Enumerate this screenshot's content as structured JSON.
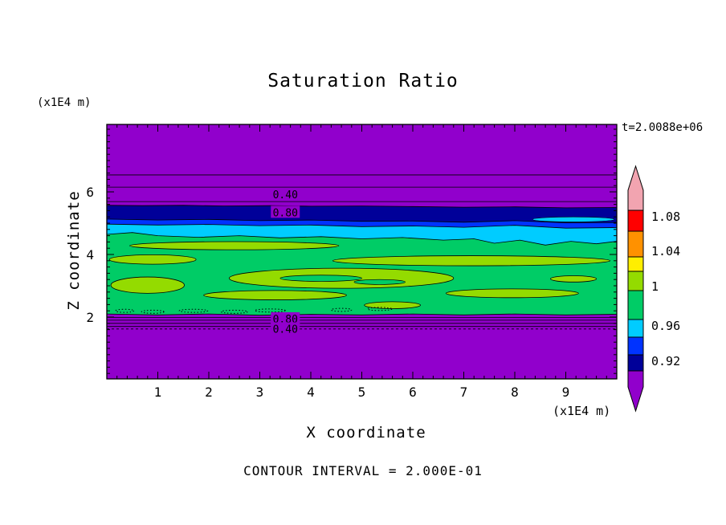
{
  "chart_data": {
    "type": "heatmap",
    "title": "Saturation Ratio",
    "time_annotation": "t=2.0088e+06",
    "xlabel": "X coordinate",
    "ylabel": "Z coordinate",
    "x_unit": "(x1E4 m)",
    "y_unit": "(x1E4 m)",
    "footer": "CONTOUR INTERVAL = 2.000E-01",
    "contour_interval": 0.2,
    "x_ticks": [
      1,
      2,
      3,
      4,
      5,
      6,
      7,
      8,
      9
    ],
    "y_ticks": [
      2,
      4,
      6
    ],
    "x_range": [
      0,
      10
    ],
    "z_range": [
      0,
      8.15
    ],
    "background_color": "#9100CC",
    "blob_color": "#94DB00",
    "green_color": "#00CC66",
    "cyan_color": "#00CCFF",
    "colorbar": {
      "labels": [
        "1.08",
        "1.04",
        "1",
        "0.96",
        "0.92"
      ],
      "colors": [
        "#F2A4B0",
        "#FF0000",
        "#FF9100",
        "#FFEE00",
        "#94DB00",
        "#00CC66",
        "#00CCFF",
        "#0033FF",
        "#000099",
        "#9100CC"
      ]
    },
    "contour_labels": [
      {
        "text": "0.40",
        "x": 3.5,
        "z": 5.92
      },
      {
        "text": "0.80",
        "x": 3.5,
        "z": 5.35
      },
      {
        "text": "0.80",
        "x": 3.5,
        "z": 1.95
      },
      {
        "text": "0.40",
        "x": 3.5,
        "z": 1.63
      }
    ],
    "contour_lines_z": [
      6.54,
      6.15,
      5.69,
      1.99,
      1.9,
      1.8,
      1.7
    ],
    "dashed_lines_z": [
      1.62
    ],
    "bands": [
      {
        "name": "navy",
        "color": "#000099",
        "edge": [
          [
            0,
            5.57
          ],
          [
            0.7,
            5.56
          ],
          [
            1.5,
            5.57
          ],
          [
            2.3,
            5.55
          ],
          [
            3.2,
            5.56
          ],
          [
            4,
            5.54
          ],
          [
            5,
            5.55
          ],
          [
            6,
            5.53
          ],
          [
            7,
            5.51
          ],
          [
            8,
            5.52
          ],
          [
            9,
            5.49
          ],
          [
            10,
            5.5
          ]
        ]
      },
      {
        "name": "blue",
        "color": "#0033FF",
        "edge": [
          [
            0,
            5.13
          ],
          [
            1,
            5.1
          ],
          [
            2,
            5.12
          ],
          [
            3,
            5.08
          ],
          [
            4,
            5.1
          ],
          [
            5,
            5.06
          ],
          [
            6,
            5.07
          ],
          [
            7,
            5.03
          ],
          [
            8,
            5.08
          ],
          [
            9,
            5.01
          ],
          [
            10,
            5.02
          ]
        ]
      },
      {
        "name": "cyan",
        "color": "#00CCFF",
        "edge": [
          [
            0,
            4.97
          ],
          [
            1,
            4.94
          ],
          [
            2,
            4.96
          ],
          [
            3,
            4.92
          ],
          [
            4,
            4.94
          ],
          [
            5,
            4.89
          ],
          [
            6,
            4.91
          ],
          [
            7,
            4.87
          ],
          [
            8,
            4.93
          ],
          [
            9,
            4.84
          ],
          [
            10,
            4.86
          ]
        ]
      },
      {
        "name": "green",
        "color": "#00CC66",
        "edge": [
          [
            0,
            4.64
          ],
          [
            0.5,
            4.7
          ],
          [
            1,
            4.6
          ],
          [
            1.8,
            4.55
          ],
          [
            2.6,
            4.6
          ],
          [
            3.4,
            4.53
          ],
          [
            4.2,
            4.57
          ],
          [
            5,
            4.5
          ],
          [
            5.8,
            4.54
          ],
          [
            6.6,
            4.46
          ],
          [
            7.2,
            4.5
          ],
          [
            7.6,
            4.36
          ],
          [
            8.1,
            4.46
          ],
          [
            8.6,
            4.3
          ],
          [
            9.1,
            4.42
          ],
          [
            9.6,
            4.34
          ],
          [
            10,
            4.42
          ]
        ]
      },
      {
        "name": "purple-bottom",
        "color": "#9100CC",
        "edge": [
          [
            0,
            2.1
          ],
          [
            1,
            2.07
          ],
          [
            2,
            2.1
          ],
          [
            3,
            2.06
          ],
          [
            4,
            2.09
          ],
          [
            5,
            2.07
          ],
          [
            6,
            2.1
          ],
          [
            7,
            2.07
          ],
          [
            8,
            2.1
          ],
          [
            9,
            2.07
          ],
          [
            10,
            2.09
          ]
        ]
      }
    ],
    "blobs": [
      [
        2.5,
        4.28,
        2.05,
        0.13
      ],
      [
        0.9,
        3.84,
        0.85,
        0.15
      ],
      [
        7.15,
        3.8,
        2.72,
        0.16
      ],
      [
        4.6,
        3.24,
        2.2,
        0.32
      ],
      [
        0.8,
        3.02,
        0.72,
        0.26
      ],
      [
        3.3,
        2.7,
        1.4,
        0.15
      ],
      [
        7.95,
        2.76,
        1.3,
        0.14
      ],
      [
        5.6,
        2.38,
        0.55,
        0.11
      ],
      [
        9.15,
        3.22,
        0.45,
        0.1
      ]
    ],
    "green_islands": [
      [
        4.2,
        3.24,
        0.8,
        0.1
      ],
      [
        5.35,
        3.12,
        0.5,
        0.08
      ]
    ],
    "dotted_contours": [
      [
        0.35,
        2.2,
        0.18,
        0.05
      ],
      [
        0.9,
        2.17,
        0.22,
        0.05
      ],
      [
        1.7,
        2.2,
        0.28,
        0.05
      ],
      [
        2.5,
        2.17,
        0.26,
        0.05
      ],
      [
        3.2,
        2.21,
        0.3,
        0.05
      ],
      [
        4.6,
        2.23,
        0.2,
        0.05
      ],
      [
        5.35,
        2.26,
        0.24,
        0.05
      ]
    ],
    "cyan_streaks": [
      [
        9.15,
        5.12,
        0.8,
        0.08
      ]
    ]
  }
}
